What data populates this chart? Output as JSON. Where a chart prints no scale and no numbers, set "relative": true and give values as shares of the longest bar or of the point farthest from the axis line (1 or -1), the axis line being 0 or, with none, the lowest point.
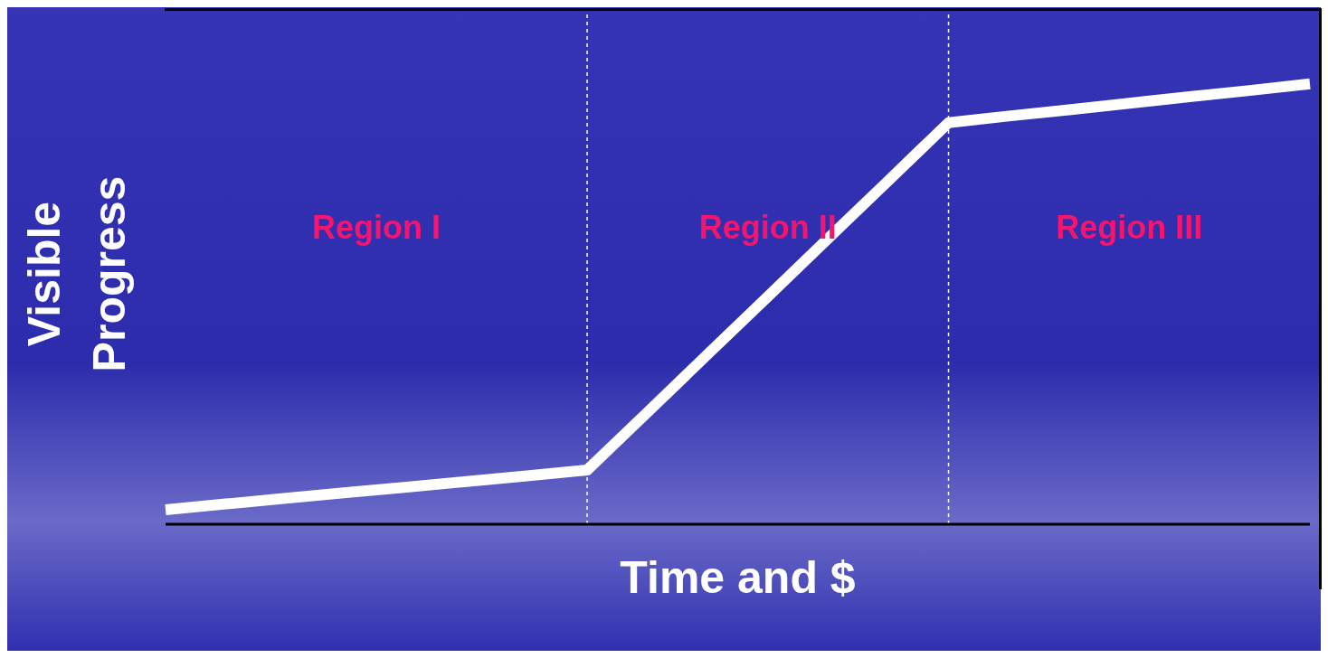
{
  "chart_data": {
    "type": "line",
    "relative": true,
    "xlabel": "Time and $",
    "ylabel": "Visible Progress",
    "categories": [
      null,
      null,
      null,
      null,
      null,
      null,
      null,
      null,
      null,
      null,
      null,
      null,
      null,
      null,
      null,
      null,
      null,
      null,
      null,
      null
    ],
    "series": [
      {
        "color": "#ffffff",
        "values": [
          0.033,
          0.046,
          0.059,
          0.072,
          0.084,
          0.097,
          0.11,
          0.123,
          0.254,
          0.386,
          0.517,
          0.649,
          0.78,
          0.912,
          0.927,
          0.941,
          0.956,
          0.971,
          0.985,
          1
        ]
      }
    ],
    "annotations": [
      "Region I",
      "Region II",
      "Region III"
    ],
    "marker": "none",
    "line_style": "solid",
    "grid": false,
    "legend": false
  }
}
